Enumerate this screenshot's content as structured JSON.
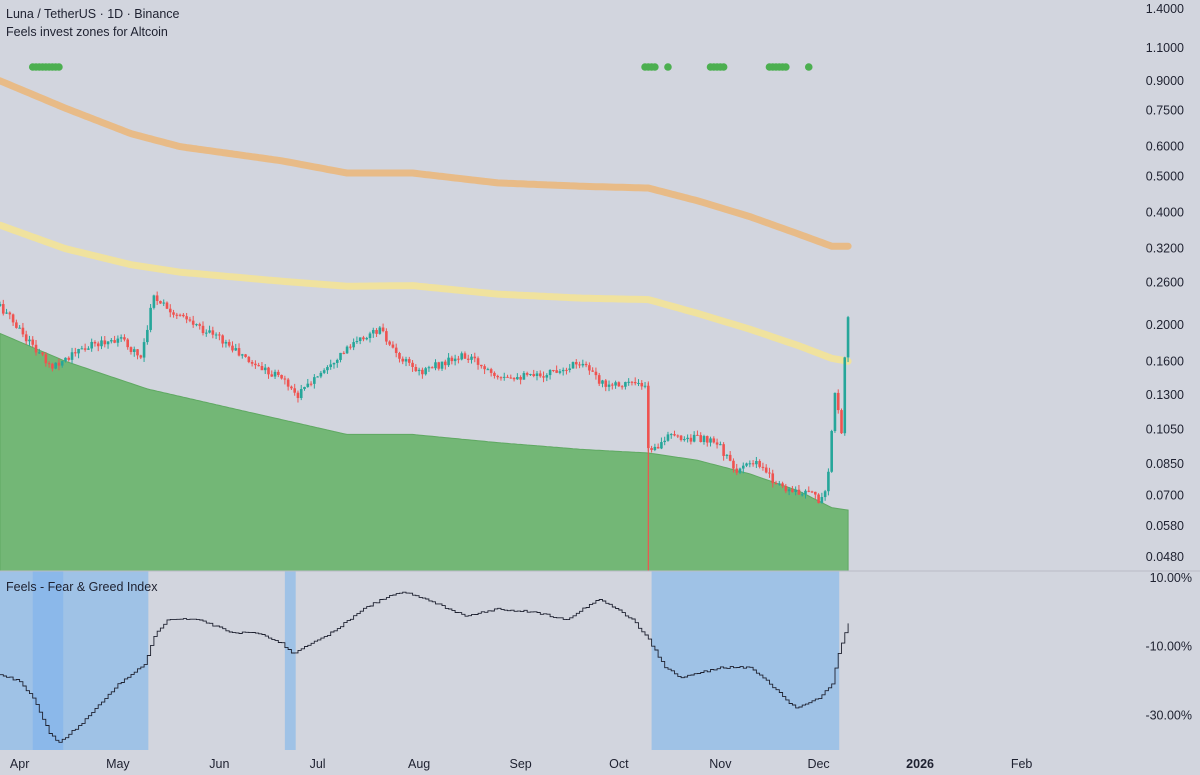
{
  "header": {
    "symbol_line": "Luna / TetherUS · 1D · Binance",
    "indicator_title": "Feels invest zones for Altcoin"
  },
  "colors": {
    "background": "#d2d5de",
    "candle_up": "#26a69a",
    "candle_down": "#ef5350",
    "band_upper": "#e9b982",
    "band_mid": "#f1e39a",
    "floor_fill": "#73b776",
    "invest_dot": "#4caf50",
    "fear_zone": "#9fc2e6",
    "extreme_fear_zone": "#8bb8ea",
    "fg_line": "#1e2130",
    "text": "#1e2130"
  },
  "chart_data": [
    {
      "type": "candlestick",
      "title": "Luna / TetherUS · 1D · Binance",
      "subtitle": "Feels invest zones for Altcoin",
      "scale": "log",
      "ylim": [
        0.044,
        1.48
      ],
      "xlim": [
        "2025-03-26",
        "2026-02-28"
      ],
      "x_ticks": [
        "Apr",
        "May",
        "Jun",
        "Jul",
        "Aug",
        "Sep",
        "Oct",
        "Nov",
        "Dec",
        "2026",
        "Feb"
      ],
      "x_tick_dates": [
        "2025-04-01",
        "2025-05-01",
        "2025-06-01",
        "2025-07-01",
        "2025-08-01",
        "2025-09-01",
        "2025-10-01",
        "2025-11-01",
        "2025-12-01",
        "2026-01-01",
        "2026-02-01"
      ],
      "y_ticks": [
        "1.4000",
        "1.1000",
        "0.9000",
        "0.7500",
        "0.6000",
        "0.5000",
        "0.4000",
        "0.3200",
        "0.2600",
        "0.2000",
        "0.1600",
        "0.1300",
        "0.1050",
        "0.0850",
        "0.0700",
        "0.0580",
        "0.0480"
      ],
      "y_tick_values": [
        1.4,
        1.1,
        0.9,
        0.75,
        0.6,
        0.5,
        0.4,
        0.32,
        0.26,
        0.2,
        0.16,
        0.13,
        0.105,
        0.085,
        0.07,
        0.058,
        0.048
      ],
      "price_keypoints": {
        "dates": [
          "2025-03-26",
          "2025-04-02",
          "2025-04-10",
          "2025-04-22",
          "2025-05-01",
          "2025-05-08",
          "2025-05-12",
          "2025-05-20",
          "2025-06-01",
          "2025-06-10",
          "2025-06-20",
          "2025-06-25",
          "2025-07-05",
          "2025-07-15",
          "2025-07-20",
          "2025-07-25",
          "2025-08-01",
          "2025-08-10",
          "2025-08-15",
          "2025-08-25",
          "2025-09-05",
          "2025-09-15",
          "2025-09-20",
          "2025-09-25",
          "2025-10-05",
          "2025-10-09",
          "2025-10-10",
          "2025-10-11",
          "2025-10-15",
          "2025-10-25",
          "2025-11-01",
          "2025-11-05",
          "2025-11-12",
          "2025-11-18",
          "2025-11-24",
          "2025-11-28",
          "2025-12-01",
          "2025-12-03",
          "2025-12-04",
          "2025-12-06",
          "2025-12-08",
          "2025-12-09",
          "2025-12-10"
        ],
        "close": [
          0.225,
          0.19,
          0.155,
          0.175,
          0.185,
          0.165,
          0.24,
          0.21,
          0.185,
          0.16,
          0.145,
          0.13,
          0.16,
          0.185,
          0.195,
          0.165,
          0.15,
          0.16,
          0.165,
          0.148,
          0.145,
          0.155,
          0.16,
          0.14,
          0.14,
          0.135,
          0.095,
          0.092,
          0.1,
          0.1,
          0.095,
          0.082,
          0.085,
          0.076,
          0.071,
          0.073,
          0.068,
          0.072,
          0.08,
          0.13,
          0.105,
          0.165,
          0.21
        ]
      },
      "series": [
        {
          "name": "upper band",
          "x": [
            "2025-03-26",
            "2025-04-15",
            "2025-05-05",
            "2025-05-20",
            "2025-06-20",
            "2025-07-10",
            "2025-07-30",
            "2025-08-25",
            "2025-09-20",
            "2025-10-10",
            "2025-10-25",
            "2025-11-10",
            "2025-11-25",
            "2025-12-05",
            "2025-12-10"
          ],
          "values": [
            0.9,
            0.76,
            0.65,
            0.6,
            0.55,
            0.51,
            0.51,
            0.48,
            0.47,
            0.465,
            0.43,
            0.39,
            0.35,
            0.325,
            0.325
          ]
        },
        {
          "name": "middle band",
          "x": [
            "2025-03-26",
            "2025-04-15",
            "2025-05-05",
            "2025-05-20",
            "2025-06-20",
            "2025-07-10",
            "2025-07-30",
            "2025-08-25",
            "2025-09-20",
            "2025-10-10",
            "2025-10-25",
            "2025-11-10",
            "2025-11-25",
            "2025-12-05",
            "2025-12-10"
          ],
          "values": [
            0.37,
            0.32,
            0.29,
            0.277,
            0.262,
            0.254,
            0.255,
            0.242,
            0.236,
            0.234,
            0.215,
            0.195,
            0.176,
            0.163,
            0.16
          ]
        },
        {
          "name": "lower band",
          "x": [
            "2025-03-26",
            "2025-04-15",
            "2025-05-10",
            "2025-06-10",
            "2025-07-10",
            "2025-07-30",
            "2025-08-25",
            "2025-09-20",
            "2025-10-10",
            "2025-10-25",
            "2025-11-10",
            "2025-11-25",
            "2025-12-05",
            "2025-12-10"
          ],
          "values": [
            0.19,
            0.16,
            0.135,
            0.117,
            0.102,
            0.102,
            0.097,
            0.093,
            0.091,
            0.087,
            0.08,
            0.072,
            0.065,
            0.064
          ]
        }
      ],
      "invest_signal_dates": [
        "2025-04-05",
        "2025-04-06",
        "2025-04-07",
        "2025-04-08",
        "2025-04-09",
        "2025-04-10",
        "2025-04-11",
        "2025-04-12",
        "2025-04-13",
        "2025-10-09",
        "2025-10-10",
        "2025-10-11",
        "2025-10-12",
        "2025-10-16",
        "2025-10-29",
        "2025-10-30",
        "2025-10-31",
        "2025-11-01",
        "2025-11-02",
        "2025-11-16",
        "2025-11-17",
        "2025-11-18",
        "2025-11-19",
        "2025-11-20",
        "2025-11-21",
        "2025-11-28"
      ]
    },
    {
      "type": "line",
      "title": "Feels - Fear & Greed Index",
      "ylim": [
        -0.4,
        0.12
      ],
      "y_ticks": [
        "10.00%",
        "-10.00%",
        "-30.00%"
      ],
      "y_tick_values": [
        0.1,
        -0.1,
        -0.3
      ],
      "series": [
        {
          "name": "Feels - Fear & Greed Index",
          "x": [
            "2025-03-26",
            "2025-04-01",
            "2025-04-05",
            "2025-04-10",
            "2025-04-13",
            "2025-04-20",
            "2025-05-01",
            "2025-05-09",
            "2025-05-12",
            "2025-05-16",
            "2025-05-25",
            "2025-06-05",
            "2025-06-13",
            "2025-06-20",
            "2025-06-23",
            "2025-07-05",
            "2025-07-15",
            "2025-07-23",
            "2025-07-27",
            "2025-08-05",
            "2025-08-15",
            "2025-08-25",
            "2025-09-05",
            "2025-09-15",
            "2025-09-25",
            "2025-10-05",
            "2025-10-10",
            "2025-10-15",
            "2025-10-20",
            "2025-11-01",
            "2025-11-10",
            "2025-11-15",
            "2025-11-24",
            "2025-12-01",
            "2025-12-05",
            "2025-12-07",
            "2025-12-10"
          ],
          "values": [
            -0.18,
            -0.2,
            -0.25,
            -0.35,
            -0.38,
            -0.32,
            -0.21,
            -0.15,
            -0.07,
            -0.02,
            -0.02,
            -0.06,
            -0.06,
            -0.09,
            -0.12,
            -0.06,
            0.01,
            0.05,
            0.06,
            0.03,
            -0.01,
            0.01,
            0.0,
            -0.02,
            0.04,
            -0.02,
            -0.08,
            -0.16,
            -0.19,
            -0.16,
            -0.16,
            -0.2,
            -0.28,
            -0.25,
            -0.21,
            -0.12,
            -0.03
          ]
        }
      ],
      "zones": [
        {
          "name": "fear",
          "start": "2025-03-26",
          "end": "2025-05-10"
        },
        {
          "name": "extreme fear",
          "start": "2025-04-05",
          "end": "2025-04-14"
        },
        {
          "name": "fear",
          "start": "2025-06-21",
          "end": "2025-06-24"
        },
        {
          "name": "fear",
          "start": "2025-10-11",
          "end": "2025-12-07"
        }
      ]
    }
  ]
}
